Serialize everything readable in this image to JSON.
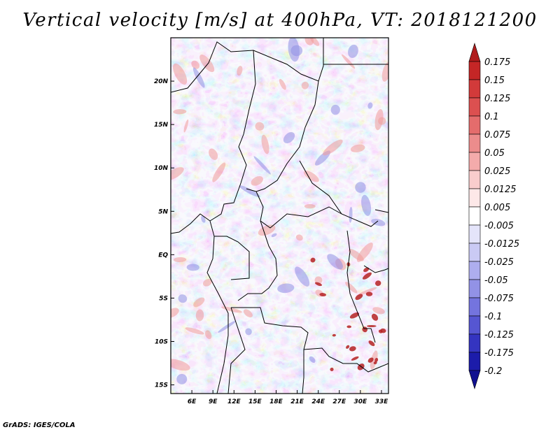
{
  "title": "Vertical velocity [m/s] at 400hPa, VT: 2018121200",
  "credit": "GrADS: IGES/COLA",
  "chart_data": {
    "type": "heatmap",
    "variable": "Vertical velocity",
    "units": "m/s",
    "level": "400hPa",
    "valid_time": "2018121200",
    "xlim": [
      3,
      34
    ],
    "ylim": [
      -16,
      25
    ],
    "x_ticks": [
      6,
      9,
      12,
      15,
      18,
      21,
      24,
      27,
      30,
      33
    ],
    "x_tick_labels": [
      "6E",
      "9E",
      "12E",
      "15E",
      "18E",
      "21E",
      "24E",
      "27E",
      "30E",
      "33E"
    ],
    "y_ticks": [
      20,
      15,
      10,
      5,
      0,
      -5,
      -10,
      -15
    ],
    "y_tick_labels": [
      "20N",
      "15N",
      "10N",
      "5N",
      "EQ",
      "5S",
      "10S",
      "15S"
    ],
    "colorbar": {
      "levels": [
        "0.175",
        "0.15",
        "0.125",
        "0.1",
        "0.075",
        "0.05",
        "0.025",
        "0.0125",
        "0.005",
        "-0.005",
        "-0.0125",
        "-0.025",
        "-0.05",
        "-0.075",
        "-0.1",
        "-0.125",
        "-0.175",
        "-0.2"
      ],
      "colors": [
        "#b01c1c",
        "#c42626",
        "#d23a3a",
        "#dc5050",
        "#e46c6c",
        "#ec8c8c",
        "#f4abab",
        "#f9cdcd",
        "#fde8e8",
        "#ffffff",
        "#e4e4fa",
        "#cacaf4",
        "#aeaeee",
        "#9292e6",
        "#7474de",
        "#5656d2",
        "#3434c0",
        "#1c1caa",
        "#101090"
      ]
    }
  }
}
